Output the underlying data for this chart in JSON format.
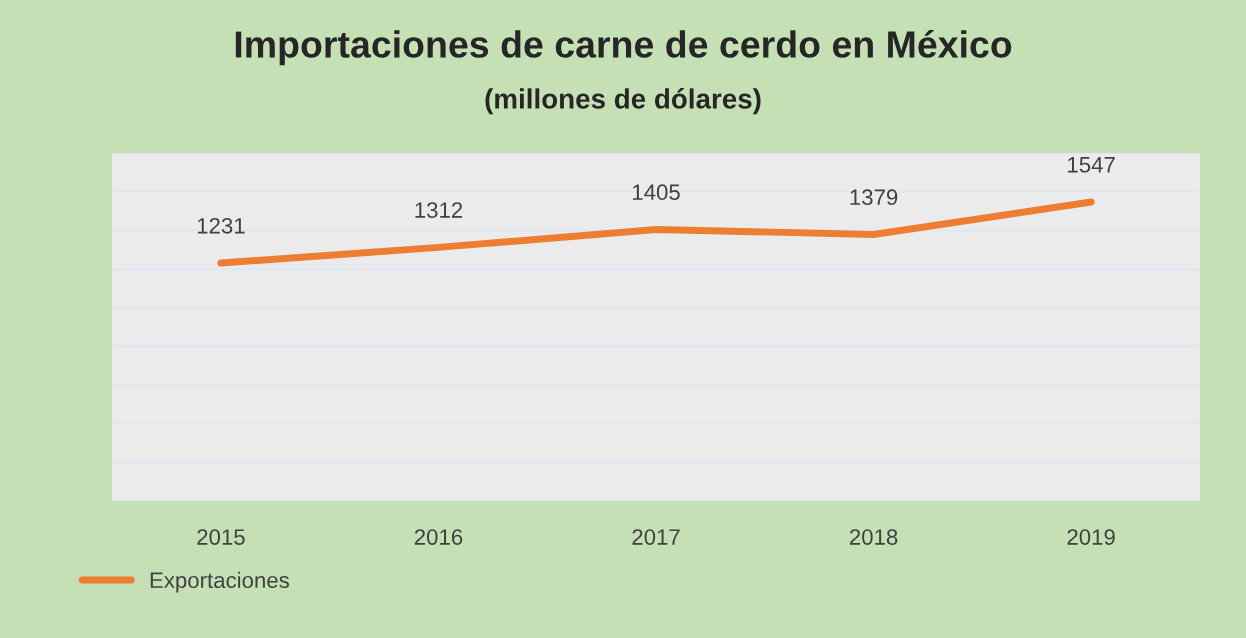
{
  "chart_data": {
    "type": "line",
    "title": "Importaciones de carne de cerdo en México",
    "subtitle": "(millones de dólares)",
    "categories": [
      "2015",
      "2016",
      "2017",
      "2018",
      "2019"
    ],
    "series": [
      {
        "name": "Exportaciones",
        "color": "#ed7d31",
        "values": [
          1231,
          1312,
          1405,
          1379,
          1547
        ]
      }
    ],
    "data_labels": true,
    "ylim": [
      0,
      1800
    ],
    "yticks": [
      {
        "value": 0,
        "label": null
      },
      {
        "value": 200,
        "label": null
      },
      {
        "value": 400,
        "label": null
      },
      {
        "value": 600,
        "label": null
      },
      {
        "value": 800,
        "label": null
      },
      {
        "value": 1000,
        "label": null
      },
      {
        "value": 1200,
        "label": null
      },
      {
        "value": 1400,
        "label": null
      },
      {
        "value": 1600,
        "label": null
      },
      {
        "value": 1800,
        "label": null
      }
    ],
    "grid": "y",
    "legend": "bottom left",
    "marker": "none",
    "line_style": "solid"
  }
}
